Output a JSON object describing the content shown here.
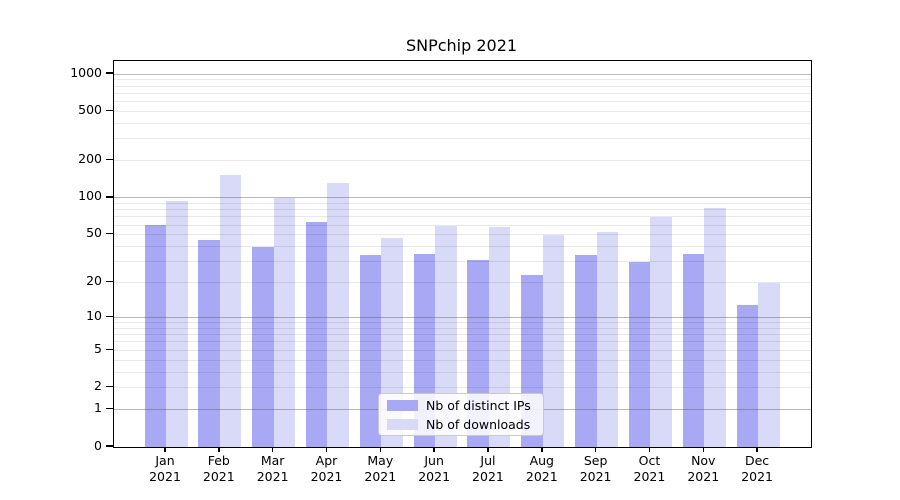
{
  "title": "SNPchip 2021",
  "year": "2021",
  "chart_data": {
    "type": "bar",
    "title": "SNPchip 2021",
    "categories": [
      "Jan 2021",
      "Feb 2021",
      "Mar 2021",
      "Apr 2021",
      "May 2021",
      "Jun 2021",
      "Jul 2021",
      "Aug 2021",
      "Sep 2021",
      "Oct 2021",
      "Nov 2021",
      "Dec 2021"
    ],
    "months": [
      "Jan",
      "Feb",
      "Mar",
      "Apr",
      "May",
      "Jun",
      "Jul",
      "Aug",
      "Sep",
      "Oct",
      "Nov",
      "Dec"
    ],
    "year": "2021",
    "series": [
      {
        "name": "Nb of distinct IPs",
        "color": "#a8a8f5",
        "values": [
          60,
          45,
          40,
          63,
          34,
          35,
          31,
          23,
          34,
          30,
          35,
          13
        ]
      },
      {
        "name": "Nb of downloads",
        "color": "#d9d9f8",
        "values": [
          95,
          153,
          100,
          131,
          47,
          59,
          58,
          50,
          53,
          70,
          83,
          20
        ]
      }
    ],
    "xlabel": "",
    "ylabel": "",
    "yscale": "log1p",
    "ylim": [
      0,
      1270
    ],
    "yticks": [
      0,
      1,
      2,
      5,
      10,
      20,
      50,
      100,
      200,
      500,
      1000
    ],
    "major_gridlines": [
      1,
      10,
      100,
      1000
    ],
    "minor_gridline_multiples": [
      2,
      3,
      4,
      5,
      6,
      7,
      8,
      9
    ],
    "grid": "on",
    "legend_position": "lower center inside",
    "legend_entries": [
      "Nb of distinct IPs",
      "Nb of downloads"
    ]
  }
}
